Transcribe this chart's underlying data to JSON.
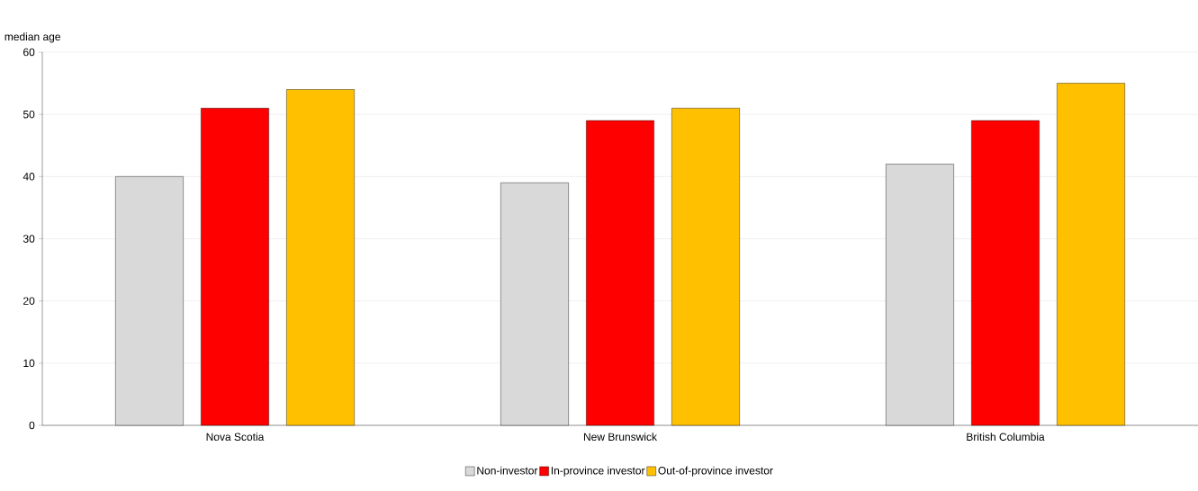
{
  "chart_data": {
    "type": "bar",
    "ylabel": "median age",
    "categories": [
      "Nova Scotia",
      "New Brunswick",
      "British Columbia"
    ],
    "series": [
      {
        "name": "Non-investor",
        "color": "#d9d9d9",
        "values": [
          40,
          39,
          42
        ]
      },
      {
        "name": "In-province investor",
        "color": "#ff0000",
        "values": [
          51,
          49,
          49
        ]
      },
      {
        "name": "Out-of-province investor",
        "color": "#ffc000",
        "values": [
          54,
          51,
          55
        ]
      }
    ],
    "ylim": [
      0,
      60
    ],
    "yticks": [
      0,
      10,
      20,
      30,
      40,
      50,
      60
    ],
    "grid": "y",
    "legend": "bottom"
  }
}
